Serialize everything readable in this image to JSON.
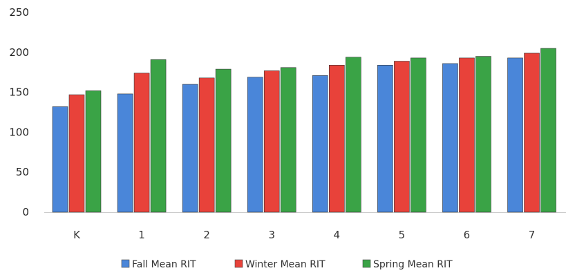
{
  "chart_data": {
    "type": "bar",
    "categories": [
      "K",
      "1",
      "2",
      "3",
      "4",
      "5",
      "6",
      "7"
    ],
    "series": [
      {
        "name": "Fall Mean RIT",
        "values": [
          132,
          148,
          160,
          169,
          171,
          184,
          186,
          193
        ],
        "color": "#4a86d9"
      },
      {
        "name": "Winter Mean RIT",
        "values": [
          147,
          174,
          168,
          177,
          184,
          189,
          193,
          199
        ],
        "color": "#e8423a"
      },
      {
        "name": "Spring Mean RIT",
        "values": [
          152,
          191,
          179,
          181,
          194,
          193,
          195,
          205
        ],
        "color": "#3aa346"
      }
    ],
    "ylim": [
      0,
      250
    ],
    "yticks": [
      0,
      50,
      100,
      150,
      200,
      250
    ],
    "title": "",
    "xlabel": "",
    "ylabel": "",
    "grid": false,
    "legend_position": "bottom"
  }
}
